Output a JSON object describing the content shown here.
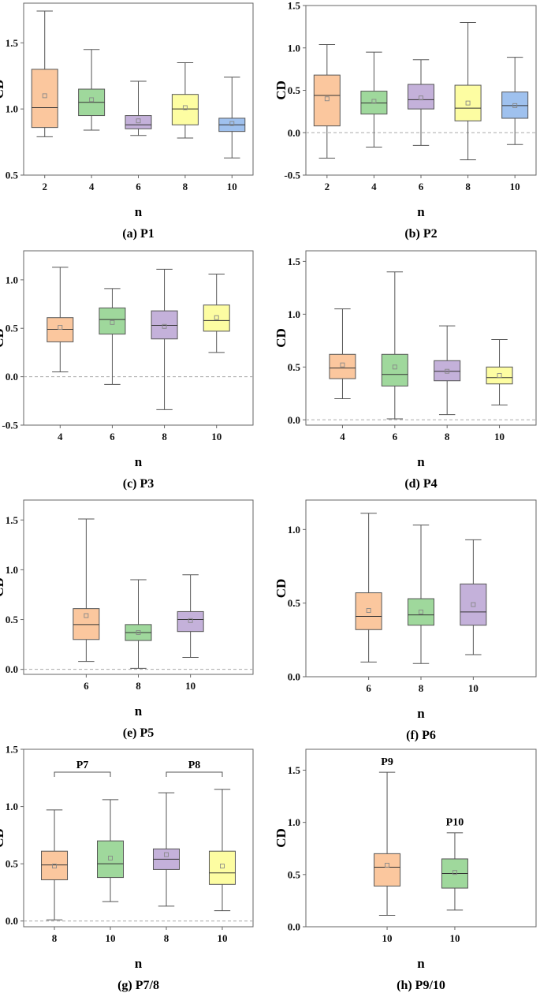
{
  "colors": {
    "orange": "#fbc79e",
    "green": "#9fd89c",
    "purple": "#c4b1da",
    "yellow": "#fdfda2",
    "blue": "#9fc1ee",
    "frame": "#666666",
    "whisker": "#555555",
    "median": "#333333",
    "mean": "#888888",
    "zero_line": "#aaaaaa"
  },
  "chart_data": [
    {
      "id": "P1",
      "type": "box",
      "caption": "(a) P1",
      "xlabel": "n",
      "ylabel": "CD",
      "ylim": [
        0.5,
        1.8
      ],
      "yticks": [
        0.5,
        1.0,
        1.5
      ],
      "zero_line": false,
      "categories": [
        "2",
        "4",
        "6",
        "8",
        "10"
      ],
      "colors": [
        "orange",
        "green",
        "purple",
        "yellow",
        "blue"
      ],
      "boxes": [
        {
          "min": 0.79,
          "q1": 0.86,
          "median": 1.01,
          "q3": 1.3,
          "max": 1.74,
          "mean": 1.1
        },
        {
          "min": 0.84,
          "q1": 0.95,
          "median": 1.05,
          "q3": 1.15,
          "max": 1.45,
          "mean": 1.07
        },
        {
          "min": 0.8,
          "q1": 0.85,
          "median": 0.88,
          "q3": 0.95,
          "max": 1.21,
          "mean": 0.91
        },
        {
          "min": 0.78,
          "q1": 0.88,
          "median": 1.0,
          "q3": 1.11,
          "max": 1.35,
          "mean": 1.01
        },
        {
          "min": 0.63,
          "q1": 0.83,
          "median": 0.88,
          "q3": 0.93,
          "max": 1.24,
          "mean": 0.89
        }
      ],
      "annotations": []
    },
    {
      "id": "P2",
      "type": "box",
      "caption": "(b) P2",
      "xlabel": "n",
      "ylabel": "CD",
      "ylim": [
        -0.5,
        1.5
      ],
      "yticks": [
        -0.5,
        0.0,
        0.5,
        1.0,
        1.5
      ],
      "zero_line": true,
      "categories": [
        "2",
        "4",
        "6",
        "8",
        "10"
      ],
      "colors": [
        "orange",
        "green",
        "purple",
        "yellow",
        "blue"
      ],
      "boxes": [
        {
          "min": -0.3,
          "q1": 0.08,
          "median": 0.44,
          "q3": 0.68,
          "max": 1.04,
          "mean": 0.4
        },
        {
          "min": -0.17,
          "q1": 0.22,
          "median": 0.35,
          "q3": 0.49,
          "max": 0.95,
          "mean": 0.37
        },
        {
          "min": -0.15,
          "q1": 0.28,
          "median": 0.39,
          "q3": 0.57,
          "max": 0.86,
          "mean": 0.41
        },
        {
          "min": -0.32,
          "q1": 0.14,
          "median": 0.29,
          "q3": 0.56,
          "max": 1.3,
          "mean": 0.35
        },
        {
          "min": -0.14,
          "q1": 0.17,
          "median": 0.32,
          "q3": 0.48,
          "max": 0.89,
          "mean": 0.32
        }
      ],
      "annotations": []
    },
    {
      "id": "P3",
      "type": "box",
      "caption": "(c) P3",
      "xlabel": "n",
      "ylabel": "CD",
      "ylim": [
        -0.5,
        1.3
      ],
      "yticks": [
        -0.5,
        0.0,
        0.5,
        1.0
      ],
      "zero_line": true,
      "categories": [
        "4",
        "6",
        "8",
        "10"
      ],
      "colors": [
        "orange",
        "green",
        "purple",
        "yellow"
      ],
      "boxes": [
        {
          "min": 0.05,
          "q1": 0.36,
          "median": 0.49,
          "q3": 0.61,
          "max": 1.13,
          "mean": 0.51
        },
        {
          "min": -0.08,
          "q1": 0.44,
          "median": 0.59,
          "q3": 0.71,
          "max": 0.91,
          "mean": 0.56
        },
        {
          "min": -0.34,
          "q1": 0.39,
          "median": 0.53,
          "q3": 0.68,
          "max": 1.11,
          "mean": 0.52
        },
        {
          "min": 0.25,
          "q1": 0.47,
          "median": 0.58,
          "q3": 0.74,
          "max": 1.06,
          "mean": 0.61
        }
      ],
      "annotations": []
    },
    {
      "id": "P4",
      "type": "box",
      "caption": "(d) P4",
      "xlabel": "n",
      "ylabel": "CD",
      "ylim": [
        -0.05,
        1.6
      ],
      "yticks": [
        0.0,
        0.5,
        1.0,
        1.5
      ],
      "zero_line": true,
      "categories": [
        "4",
        "6",
        "8",
        "10"
      ],
      "colors": [
        "orange",
        "green",
        "purple",
        "yellow"
      ],
      "boxes": [
        {
          "min": 0.2,
          "q1": 0.39,
          "median": 0.49,
          "q3": 0.62,
          "max": 1.05,
          "mean": 0.52
        },
        {
          "min": 0.01,
          "q1": 0.32,
          "median": 0.43,
          "q3": 0.62,
          "max": 1.4,
          "mean": 0.5
        },
        {
          "min": 0.05,
          "q1": 0.37,
          "median": 0.46,
          "q3": 0.56,
          "max": 0.89,
          "mean": 0.46
        },
        {
          "min": 0.14,
          "q1": 0.34,
          "median": 0.4,
          "q3": 0.5,
          "max": 0.76,
          "mean": 0.42
        }
      ],
      "annotations": []
    },
    {
      "id": "P5",
      "type": "box",
      "caption": "(e) P5",
      "xlabel": "n",
      "ylabel": "CD",
      "ylim": [
        -0.05,
        1.7
      ],
      "yticks": [
        0.0,
        0.5,
        1.0,
        1.5
      ],
      "zero_line": true,
      "categories": [
        "6",
        "8",
        "10"
      ],
      "colors": [
        "orange",
        "green",
        "purple"
      ],
      "boxes": [
        {
          "min": 0.08,
          "q1": 0.3,
          "median": 0.45,
          "q3": 0.61,
          "max": 1.51,
          "mean": 0.54
        },
        {
          "min": 0.01,
          "q1": 0.29,
          "median": 0.37,
          "q3": 0.45,
          "max": 0.9,
          "mean": 0.37
        },
        {
          "min": 0.12,
          "q1": 0.38,
          "median": 0.5,
          "q3": 0.58,
          "max": 0.95,
          "mean": 0.49
        }
      ],
      "annotations": []
    },
    {
      "id": "P6",
      "type": "box",
      "caption": "(f) P6",
      "xlabel": "n",
      "ylabel": "CD",
      "ylim": [
        0.0,
        1.2
      ],
      "yticks": [
        0.0,
        0.5,
        1.0
      ],
      "zero_line": false,
      "categories": [
        "6",
        "8",
        "10"
      ],
      "colors": [
        "orange",
        "green",
        "purple"
      ],
      "boxes": [
        {
          "min": 0.1,
          "q1": 0.32,
          "median": 0.41,
          "q3": 0.57,
          "max": 1.11,
          "mean": 0.45
        },
        {
          "min": 0.09,
          "q1": 0.35,
          "median": 0.42,
          "q3": 0.53,
          "max": 1.03,
          "mean": 0.44
        },
        {
          "min": 0.15,
          "q1": 0.35,
          "median": 0.44,
          "q3": 0.63,
          "max": 0.93,
          "mean": 0.49
        }
      ],
      "annotations": []
    },
    {
      "id": "P7/8",
      "type": "box",
      "caption": "(g) P7/8",
      "xlabel": "n",
      "ylabel": "CD",
      "ylim": [
        -0.05,
        1.5
      ],
      "yticks": [
        0.0,
        0.5,
        1.0,
        1.5
      ],
      "zero_line": true,
      "categories": [
        "8",
        "10",
        "8",
        "10"
      ],
      "colors": [
        "orange",
        "green",
        "purple",
        "yellow"
      ],
      "boxes": [
        {
          "min": 0.01,
          "q1": 0.36,
          "median": 0.49,
          "q3": 0.61,
          "max": 0.97,
          "mean": 0.48
        },
        {
          "min": 0.17,
          "q1": 0.38,
          "median": 0.5,
          "q3": 0.7,
          "max": 1.06,
          "mean": 0.55
        },
        {
          "min": 0.13,
          "q1": 0.45,
          "median": 0.54,
          "q3": 0.63,
          "max": 1.12,
          "mean": 0.58
        },
        {
          "min": 0.09,
          "q1": 0.32,
          "median": 0.42,
          "q3": 0.61,
          "max": 1.15,
          "mean": 0.48
        }
      ],
      "annotations": [
        {
          "label": "P7",
          "bracket": [
            0,
            1
          ],
          "y": 1.3
        },
        {
          "label": "P8",
          "bracket": [
            2,
            3
          ],
          "y": 1.3
        }
      ]
    },
    {
      "id": "P9/10",
      "type": "box",
      "caption": "(h) P9/10",
      "xlabel": "n",
      "ylabel": "CD",
      "ylim": [
        0.0,
        1.7
      ],
      "yticks": [
        0.0,
        0.5,
        1.0,
        1.5
      ],
      "zero_line": false,
      "categories": [
        "10",
        "10"
      ],
      "colors": [
        "orange",
        "green"
      ],
      "boxes": [
        {
          "min": 0.11,
          "q1": 0.39,
          "median": 0.57,
          "q3": 0.7,
          "max": 1.48,
          "mean": 0.59
        },
        {
          "min": 0.16,
          "q1": 0.37,
          "median": 0.51,
          "q3": 0.65,
          "max": 0.9,
          "mean": 0.52
        }
      ],
      "annotations": [
        {
          "label": "P9",
          "box": 0,
          "y": 1.55
        },
        {
          "label": "P10",
          "box": 1,
          "y": 0.97
        }
      ]
    }
  ]
}
